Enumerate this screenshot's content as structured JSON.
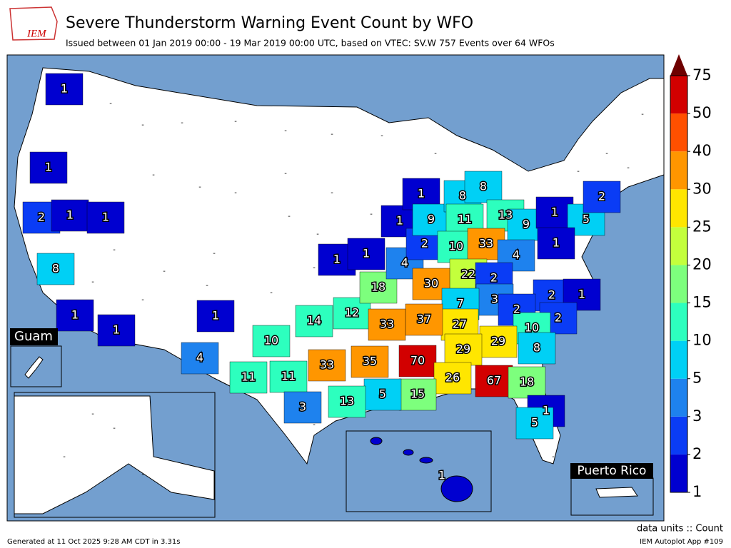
{
  "header": {
    "logo": "IEM",
    "title": "Severe Thunderstorm Warning Event Count by WFO",
    "subtitle": "Issued between 01 Jan 2019 00:00 - 19 Mar 2019 00:00 UTC, based on VTEC: SV.W   757 Events over 64 WFOs"
  },
  "insets": {
    "guam": "Guam",
    "puerto_rico": "Puerto Rico"
  },
  "no_event_label": "-",
  "wfo_counts": [
    1,
    1,
    2,
    1,
    1,
    8,
    1,
    1,
    1,
    4,
    10,
    14,
    12,
    18,
    1,
    1,
    1,
    1,
    4,
    2,
    9,
    8,
    8,
    11,
    10,
    13,
    33,
    9,
    1,
    5,
    2,
    1,
    4,
    22,
    30,
    2,
    3,
    7,
    2,
    1,
    2,
    2,
    10,
    8,
    29,
    27,
    37,
    33,
    29,
    11,
    11,
    33,
    35,
    70,
    26,
    67,
    18,
    15,
    5,
    13,
    3,
    1,
    5,
    1
  ],
  "colorbar": {
    "ticks": [
      1,
      2,
      3,
      5,
      10,
      15,
      20,
      25,
      30,
      40,
      50,
      75
    ],
    "colors": [
      "#0000d0",
      "#0a3cf5",
      "#1e82ee",
      "#00d0f5",
      "#2dffbe",
      "#7dff7d",
      "#c3ff3c",
      "#ffe600",
      "#ff9600",
      "#ff5000",
      "#d20000"
    ],
    "over_color": "#6e0000",
    "units_label": "data units :: Count"
  },
  "footer": {
    "generated": "Generated at 11 Oct 2025 9:28 AM CDT in 3.31s",
    "app": "IEM Autoplot App #109"
  }
}
